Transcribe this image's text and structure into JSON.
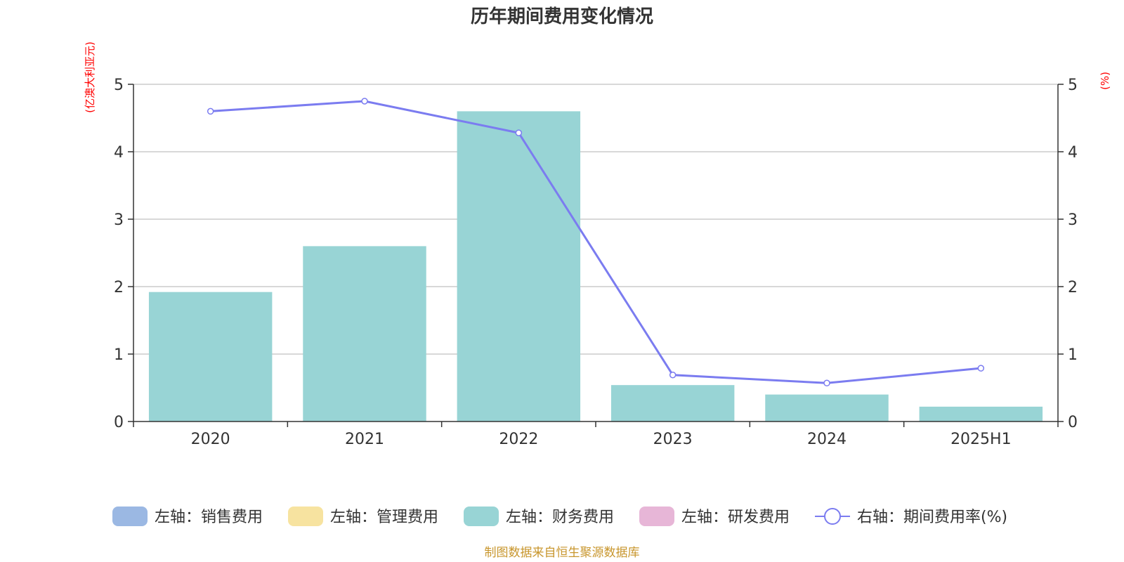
{
  "chart_data": {
    "type": "bar",
    "title": "历年期间费用变化情况",
    "categories": [
      "2020",
      "2021",
      "2022",
      "2023",
      "2024",
      "2025H1"
    ],
    "left_axis": {
      "unit_label": "(亿澳大利亚元)",
      "ylim": [
        0,
        5
      ],
      "ticks": [
        "0",
        "1",
        "2",
        "3",
        "4",
        "5"
      ]
    },
    "right_axis": {
      "unit_label": "(%)",
      "ylim": [
        0,
        5
      ],
      "ticks": [
        "0",
        "1",
        "2",
        "3",
        "4",
        "5"
      ]
    },
    "series": [
      {
        "name": "左轴：销售费用",
        "kind": "bar",
        "axis": "left",
        "color": "#9bb8e3",
        "values": [
          null,
          null,
          null,
          null,
          null,
          null
        ]
      },
      {
        "name": "左轴：管理费用",
        "kind": "bar",
        "axis": "left",
        "color": "#f7e3a0",
        "values": [
          null,
          null,
          null,
          null,
          null,
          null
        ]
      },
      {
        "name": "左轴：财务费用",
        "kind": "bar",
        "axis": "left",
        "color": "#98d4d5",
        "values": [
          1.92,
          2.6,
          4.6,
          0.54,
          0.4,
          0.22
        ]
      },
      {
        "name": "左轴：研发费用",
        "kind": "bar",
        "axis": "left",
        "color": "#e7b6d7",
        "values": [
          null,
          null,
          null,
          null,
          null,
          null
        ]
      },
      {
        "name": "右轴：期间费用率(%)",
        "kind": "line",
        "axis": "right",
        "color": "#7b7cf0",
        "values": [
          4.6,
          4.75,
          4.28,
          0.69,
          0.57,
          0.79
        ]
      }
    ],
    "grid": true,
    "legend_position": "bottom"
  },
  "source": "制图数据来自恒生聚源数据库",
  "colors": {
    "axis_unit": "#ff0000",
    "source": "#c8962d",
    "grid": "#cccccc",
    "axis": "#333333"
  }
}
